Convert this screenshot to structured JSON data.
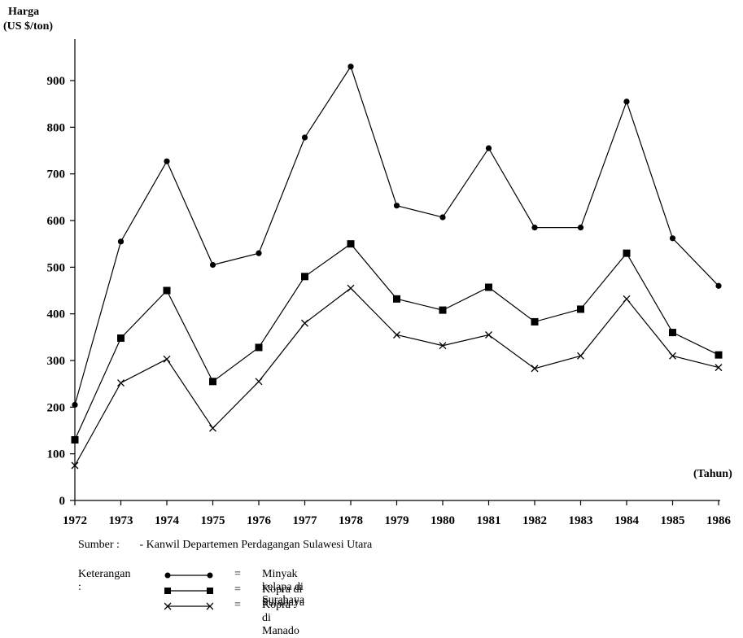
{
  "chart_data": {
    "type": "line",
    "ylabel_line1": "Harga",
    "ylabel_line2": "(US  $/ton)",
    "xlabel": "(Tahun)",
    "ylim": [
      0,
      1000
    ],
    "yticks": [
      0,
      100,
      200,
      300,
      400,
      500,
      600,
      700,
      800,
      900
    ],
    "x": [
      "1972",
      "1973",
      "1974",
      "1975",
      "1976",
      "1977",
      "1978",
      "1979",
      "1980",
      "1981",
      "1982",
      "1983",
      "1984",
      "1985",
      "1986"
    ],
    "series": [
      {
        "name": "Minyak kelapa di Surabaya",
        "marker": "circle",
        "values": [
          205,
          555,
          727,
          505,
          530,
          778,
          930,
          632,
          607,
          755,
          585,
          585,
          855,
          562,
          460
        ]
      },
      {
        "name": "Kopra di Surabaya",
        "marker": "square",
        "values": [
          130,
          348,
          450,
          255,
          328,
          480,
          550,
          432,
          408,
          457,
          383,
          410,
          530,
          360,
          312
        ]
      },
      {
        "name": "Kopra di Manado",
        "marker": "cross",
        "values": [
          75,
          252,
          303,
          155,
          255,
          380,
          455,
          355,
          332,
          355,
          283,
          310,
          432,
          310,
          285
        ]
      }
    ],
    "grid": false
  },
  "source": {
    "label": "Sumber :",
    "text": "- Kanwil Departemen Perdagangan Sulawesi Utara"
  },
  "legend": {
    "title": "Keterangan :",
    "equals": "=",
    "items": [
      "Minyak kelapa di Surabaya",
      "Kopra di Surabaya",
      "Kopra di Manado"
    ]
  }
}
